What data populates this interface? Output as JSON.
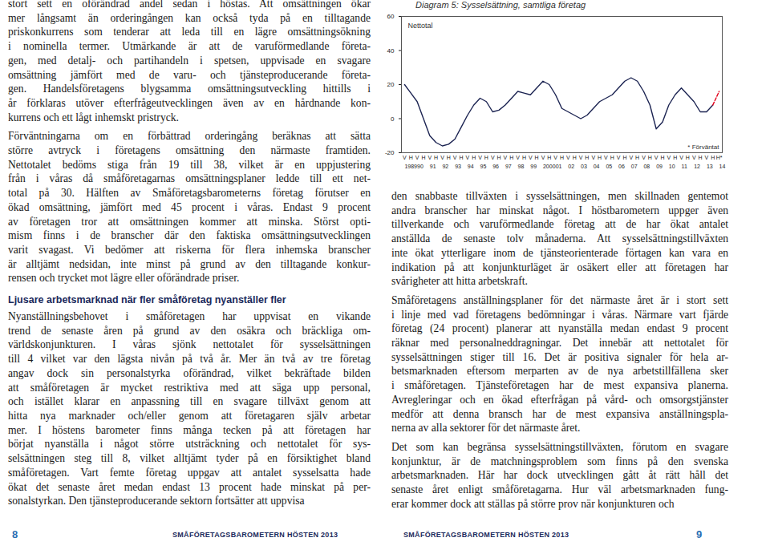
{
  "left_column": [
    {
      "lines": [
        "stort sett en oförändrad andel sedan i höstas. Att omsättningen ökar",
        "mer långsamt än orderingången kan också tyda på en tilltagande",
        "priskonkurrens som tenderar att leda till en lägre omsättningsökning",
        "i nominella termer. Utmärkande är att de varuförmedlande företa-",
        "gen, med detalj- och partihandeln i spetsen, uppvisade en svagare",
        "omsättning jämfört med de varu- och tjänsteproducerande företa-",
        "gen. Handelsföretagens blygsamma omsättningsutveckling hittills i",
        "år förklaras utöver efterfrågeutvecklingen även av en hårdnande kon-",
        "kurrens och ett lågt inhemskt pristryck."
      ]
    },
    {
      "lines": [
        "Förväntningarna om en förbättrad orderingång beräknas att sätta",
        "större avtryck i företagens omsättning den närmaste framtiden.",
        "Nettotalet bedöms stiga från 19 till 38, vilket är en uppjustering",
        "från i våras då småföretagarnas omsättningsplaner ledde till ett net-",
        "total på 30. Hälften av Småföretagsbarometerns företag förutser en",
        "ökad omsättning, jämfört med 45 procent i våras. Endast 9 procent",
        "av företagen tror att omsättningen kommer att minska. Störst opti-",
        "mism finns i de branscher där den faktiska omsättningsutvecklingen",
        "varit svagast. Vi bedömer att riskerna för flera inhemska branscher",
        "är alltjämt nedsidan, inte minst på grund av den tilltagande konkur-",
        "rensen och trycket mot lägre eller oförändrade priser."
      ]
    },
    {
      "heading": "Ljusare arbetsmarknad när fler småföretag nyanställer fler"
    },
    {
      "lines": [
        "Nyanställningsbehovet i småföretagen har uppvisat en vikande",
        "trend de senaste åren på grund av den osäkra och bräckliga om-",
        "världskonjunkturen. I våras sjönk nettotalet för sysselsättningen",
        "till 4 vilket var den lägsta nivån på två år. Mer än två av tre företag",
        "angav dock sin personalstyrka oförändrad, vilket bekräftade bilden",
        "att småföretagen är mycket restriktiva med att säga upp personal,",
        "och istället klarar en anpassning till en svagare tillväxt genom att",
        "hitta nya marknader och/eller genom att företagaren själv arbetar",
        "mer. I höstens barometer finns många tecken på att företagen har",
        "börjat nyanställa i något större utsträckning och nettotalet för sys-",
        "selsättningen steg till 8, vilket alltjämt tyder på en försiktighet bland",
        "småföretagen. Vart femte företag uppgav att antalet sysselsatta hade",
        "ökat det senaste året medan endast 13 procent hade minskat på per-",
        "sonalstyrkan. Den tjänsteproducerande sektorn fortsätter att uppvisa"
      ]
    }
  ],
  "right_column": [
    {
      "lines": [
        "den snabbaste tillväxten i sysselsättningen, men skillnaden gentemot",
        "andra branscher har minskat något. I höstbarometern uppger även",
        "tillverkande och varuförmedlande företag att de har ökat antalet",
        "anställda de senaste tolv månaderna. Att sysselsättningstillväxten",
        "inte ökat ytterligare inom de tjänsteorienterade förtagen kan vara en",
        "indikation på att konjunkturläget är osäkert eller att företagen har",
        "svårigheter att hitta arbetskraft."
      ]
    },
    {
      "lines": [
        "Småföretagens anställningsplaner för det närmaste året är i stort sett",
        "i linje med vad företagens bedömningar i våras. Närmare vart fjärde",
        "företag (24 procent) planerar att nyanställa medan endast 9 procent",
        "räknar med personalneddragningar. Det innebär att nettotalet för",
        "sysselsättningen stiger till 16. Det är positiva signaler för hela ar-",
        "betsmarknaden eftersom merparten av de nya arbetstillfällena sker",
        "i småföretagen. Tjänsteföretagen har de mest expansiva planerna.",
        "Avregleringar och en ökad efterfrågan på vård- och omsorgstjänster",
        "medför att denna bransch har de mest expansiva anställningspla-",
        "nerna av alla sektorer för det närmaste året."
      ]
    },
    {
      "lines": [
        "Det som kan begränsa sysselsättningstillväxten, förutom en svagare",
        "konjunktur, är de matchningsproblem som finns på den svenska",
        "arbetsmarknaden. Här har dock utvecklingen gått åt rätt håll det",
        "senaste året enligt småföretagarna. Hur väl arbetsmarknaden fung-",
        "erar kommer dock att ställas på större prov när konjunkturen och"
      ]
    }
  ],
  "footer": {
    "left_page_number": 8,
    "left_running_title": "SMÅFÖRETAGSBAROMETERN HÖSTEN 2013",
    "right_running_title": "SMÅFÖRETAGSBAROMETERN HÖSTEN 2013",
    "right_page_number": 9
  },
  "chart_data": {
    "type": "line",
    "title": "Diagram 5: Sysselsättning, samtliga företag",
    "categories": [
      "V",
      "H",
      "V",
      "H",
      "V",
      "H",
      "V",
      "H",
      "V",
      "H",
      "V",
      "H",
      "V",
      "H",
      "V",
      "H",
      "V",
      "H",
      "V",
      "H",
      "V",
      "H",
      "V",
      "H",
      "V",
      "H",
      "V",
      "H",
      "V",
      "H",
      "V",
      "H",
      "V",
      "H",
      "V",
      "H",
      "V",
      "H",
      "V",
      "H",
      "V",
      "H",
      "V",
      "H",
      "V",
      "H",
      "V",
      "H",
      "V",
      "H",
      "H*"
    ],
    "year_labels": [
      "1989",
      null,
      "90",
      null,
      "91",
      null,
      "92",
      null,
      "93",
      null,
      "94",
      null,
      "95",
      null,
      "96",
      null,
      "97",
      null,
      "98",
      null,
      "99",
      null,
      "2000",
      null,
      "01",
      null,
      "02",
      null,
      "03",
      null,
      "04",
      null,
      "05",
      null,
      "06",
      null,
      "07",
      null,
      "08",
      null,
      "09",
      null,
      "10",
      null,
      "11",
      null,
      "12",
      null,
      "13",
      null,
      "14"
    ],
    "series": [
      {
        "name": "Nettotal",
        "color": "#1c2452",
        "line_style": "solid",
        "values": [
          20,
          15,
          10,
          0,
          -10,
          -14,
          -16,
          -15,
          -12,
          -5,
          2,
          8,
          12,
          10,
          4,
          5,
          8,
          12,
          16,
          15,
          14,
          18,
          22,
          20,
          14,
          6,
          4,
          2,
          0,
          2,
          6,
          10,
          12,
          14,
          18,
          22,
          24,
          22,
          16,
          8,
          -6,
          -2,
          8,
          14,
          18,
          14,
          10,
          4,
          4,
          8,
          null
        ]
      },
      {
        "name": "* Förväntat",
        "color": "#e3001b",
        "line_style": "dashed",
        "values": [
          null,
          null,
          null,
          null,
          null,
          null,
          null,
          null,
          null,
          null,
          null,
          null,
          null,
          null,
          null,
          null,
          null,
          null,
          null,
          null,
          null,
          null,
          null,
          null,
          null,
          null,
          null,
          null,
          null,
          null,
          null,
          null,
          null,
          null,
          null,
          null,
          null,
          null,
          null,
          null,
          null,
          null,
          null,
          null,
          null,
          null,
          null,
          null,
          null,
          8,
          16
        ]
      }
    ],
    "ylim": [
      -20,
      60
    ],
    "yticks": [
      -20,
      0,
      20,
      40,
      60
    ],
    "grid": false
  }
}
